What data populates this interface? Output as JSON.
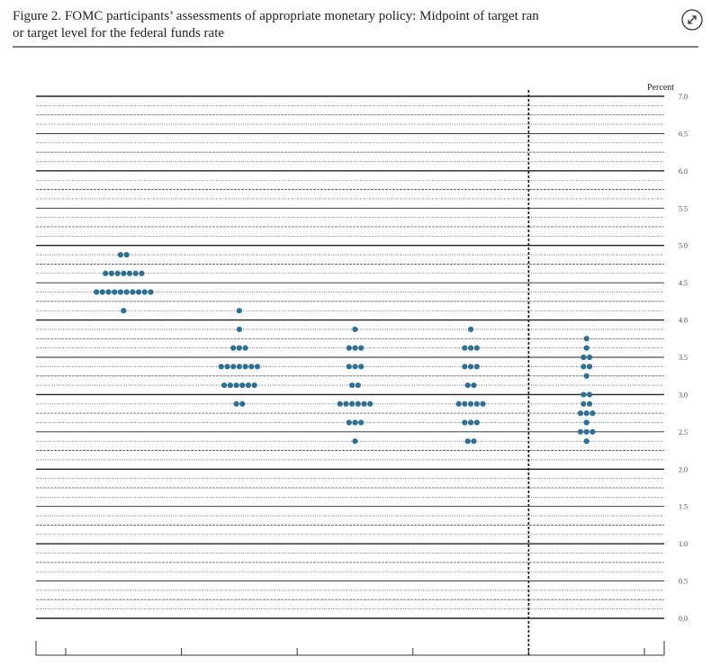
{
  "chart_data": {
    "type": "dot",
    "title": "Figure 2.  FOMC participants’ assessments of appropriate monetary policy: Midpoint of target ran",
    "subtitle": "or target level for the federal funds rate",
    "y_label": "Percent",
    "color": "#2e6f92",
    "categories": [
      null,
      null,
      null,
      null,
      null
    ],
    "columns": [
      {
        "levels": [
          4.875,
          4.625,
          4.375,
          4.125
        ],
        "counts": [
          2,
          7,
          10,
          1
        ]
      },
      {
        "levels": [
          4.125,
          3.875,
          3.625,
          3.375,
          3.125,
          2.875
        ],
        "counts": [
          1,
          1,
          3,
          7,
          6,
          2
        ]
      },
      {
        "levels": [
          3.875,
          3.625,
          3.375,
          3.125,
          2.875,
          2.625,
          2.375
        ],
        "counts": [
          1,
          3,
          3,
          2,
          6,
          3,
          1
        ]
      },
      {
        "levels": [
          3.875,
          3.625,
          3.375,
          3.125,
          2.875,
          2.625,
          2.375
        ],
        "counts": [
          1,
          3,
          3,
          2,
          5,
          3,
          2
        ]
      },
      {
        "levels": [
          3.75,
          3.625,
          3.5,
          3.375,
          3.25,
          3.0,
          2.875,
          2.75,
          2.625,
          2.5,
          2.375
        ],
        "counts": [
          1,
          1,
          2,
          2,
          1,
          2,
          2,
          3,
          1,
          3,
          1
        ]
      }
    ],
    "ylim": [
      0,
      7
    ],
    "yticks": [
      {
        "value": 7,
        "label": "7.0"
      },
      {
        "value": 6.5,
        "label": "6.5"
      },
      {
        "value": 6,
        "label": "6.0"
      },
      {
        "value": 5.5,
        "label": "5.5"
      },
      {
        "value": 5,
        "label": "5.0"
      },
      {
        "value": 4.5,
        "label": "4.5"
      },
      {
        "value": 4,
        "label": "4.0"
      },
      {
        "value": 3.5,
        "label": "3.5"
      },
      {
        "value": 3,
        "label": "3.0"
      },
      {
        "value": 2.5,
        "label": "2.5"
      },
      {
        "value": 2,
        "label": "2.0"
      },
      {
        "value": 1.5,
        "label": "1.5"
      },
      {
        "value": 1,
        "label": "1.0"
      },
      {
        "value": 0.5,
        "label": "0.5"
      },
      {
        "value": 0,
        "label": "0.0"
      }
    ]
  }
}
